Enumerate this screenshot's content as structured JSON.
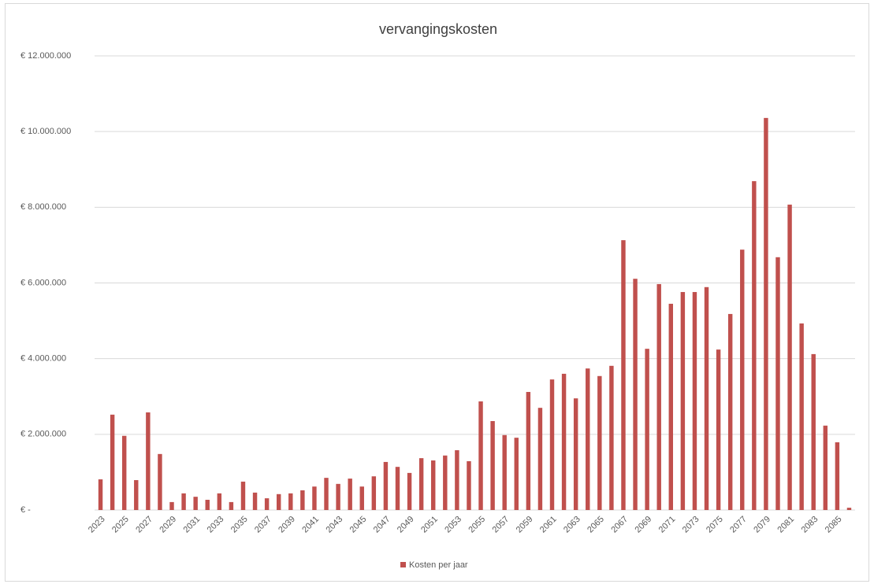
{
  "chart_data": {
    "type": "bar",
    "title": "vervangingskosten",
    "categories": [
      2023,
      null,
      2025,
      null,
      2027,
      null,
      2029,
      null,
      2031,
      null,
      2033,
      null,
      2035,
      null,
      2037,
      null,
      2039,
      null,
      2041,
      null,
      2043,
      null,
      2045,
      null,
      2047,
      null,
      2049,
      null,
      2051,
      null,
      2053,
      null,
      2055,
      null,
      2057,
      null,
      2059,
      null,
      2061,
      null,
      2063,
      null,
      2065,
      null,
      2067,
      null,
      2069,
      null,
      2071,
      null,
      2073,
      null,
      2075,
      null,
      2077,
      null,
      2079,
      null,
      2081,
      null,
      2083,
      null,
      2085,
      null
    ],
    "series": [
      {
        "name": "Kosten per jaar",
        "color": "#c0504d",
        "values": [
          810000,
          2520000,
          1960000,
          790000,
          2580000,
          1480000,
          210000,
          440000,
          350000,
          270000,
          440000,
          210000,
          750000,
          460000,
          310000,
          420000,
          440000,
          520000,
          620000,
          850000,
          690000,
          830000,
          620000,
          890000,
          1270000,
          1140000,
          980000,
          1370000,
          1310000,
          1440000,
          1580000,
          1290000,
          2870000,
          2350000,
          1980000,
          1910000,
          3120000,
          2700000,
          3450000,
          3600000,
          2950000,
          3740000,
          3540000,
          3810000,
          7130000,
          6110000,
          4260000,
          5970000,
          5450000,
          5760000,
          5760000,
          5890000,
          4240000,
          5180000,
          6880000,
          8690000,
          10360000,
          6680000,
          8070000,
          4930000,
          4120000,
          2230000,
          1790000,
          60000
        ]
      }
    ],
    "ylim": [
      0,
      12000000
    ],
    "yticks": [
      {
        "value": 0,
        "label": "€ -"
      },
      {
        "value": 2000000,
        "label": "€ 2.000.000"
      },
      {
        "value": 4000000,
        "label": "€ 4.000.000"
      },
      {
        "value": 6000000,
        "label": "€ 6.000.000"
      },
      {
        "value": 8000000,
        "label": "€ 8.000.000"
      },
      {
        "value": 10000000,
        "label": "€ 10.000.000"
      },
      {
        "value": 12000000,
        "label": "€ 12.000.000"
      }
    ],
    "grid": true,
    "legend": "bottom"
  }
}
